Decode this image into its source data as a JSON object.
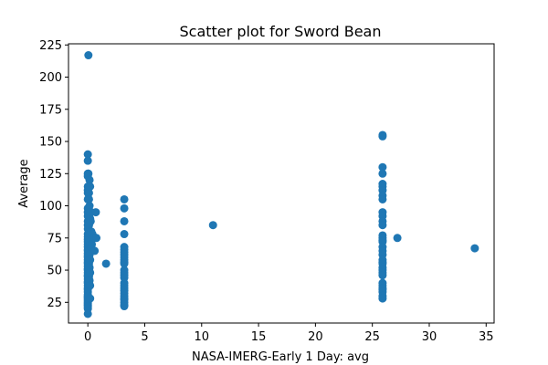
{
  "chart_data": {
    "type": "scatter",
    "title": "Scatter plot for Sword Bean",
    "xlabel": "NASA-IMERG-Early 1 Day: avg",
    "ylabel": "Average",
    "xlim": [
      -1.7,
      35.7
    ],
    "ylim": [
      8.9,
      225.9
    ],
    "xticks": [
      0,
      5,
      10,
      15,
      20,
      25,
      30,
      35
    ],
    "yticks": [
      25,
      50,
      75,
      100,
      125,
      150,
      175,
      200,
      225
    ],
    "grid": false,
    "marker_color": "#1f77b4",
    "series": [
      {
        "x": [
          0.05,
          0.0,
          0.0,
          0.0,
          0.0,
          0.0,
          0.0,
          0.0,
          0.0,
          0.0,
          0.0,
          0.0,
          0.0,
          0.0,
          0.0,
          0.0,
          0.0,
          0.0,
          0.0,
          0.0,
          0.0,
          0.0,
          0.0,
          0.0,
          0.0,
          0.0,
          0.0,
          0.0,
          0.0,
          0.0,
          0.0,
          0.0,
          0.0,
          0.0,
          0.0,
          0.0,
          0.0,
          0.0,
          0.0,
          0.0,
          0.0,
          0.0,
          0.0,
          0.0,
          0.0,
          0.0,
          0.0,
          0.0,
          0.0,
          0.0,
          0.0,
          0.0,
          0.0,
          0.0,
          0.0,
          0.05,
          0.1,
          0.1,
          0.1,
          0.1,
          0.1,
          0.1,
          0.1,
          0.1,
          0.1,
          0.1,
          0.1,
          0.1,
          0.1,
          0.1,
          0.1,
          0.15,
          0.15,
          0.15,
          0.15,
          0.15,
          0.15,
          0.15,
          0.2,
          0.2,
          0.2,
          0.2,
          0.2,
          0.2,
          0.2,
          0.2,
          0.2,
          0.25,
          0.3,
          0.3,
          0.3,
          0.35,
          0.4,
          0.5,
          0.6,
          0.6,
          0.7,
          0.75,
          1.6,
          3.2,
          3.2,
          3.2,
          3.2,
          3.2,
          3.2,
          3.2,
          3.2,
          3.2,
          3.2,
          3.2,
          3.2,
          3.2,
          3.2,
          3.2,
          3.2,
          3.2,
          3.2,
          3.2,
          3.2,
          3.2,
          3.2,
          3.2,
          3.2,
          3.2,
          3.2,
          3.2,
          11.0,
          25.9,
          25.9,
          25.9,
          25.9,
          25.9,
          25.9,
          25.9,
          25.9,
          25.9,
          25.9,
          25.9,
          25.9,
          25.9,
          25.9,
          25.9,
          25.9,
          25.9,
          25.9,
          25.9,
          25.9,
          25.9,
          25.9,
          25.9,
          25.9,
          25.9,
          25.9,
          25.9,
          25.9,
          25.9,
          25.9,
          25.9,
          25.9,
          25.9,
          25.9,
          27.2,
          34.0
        ],
        "y": [
          217,
          140,
          135,
          125,
          123,
          115,
          112,
          110,
          105,
          98,
          95,
          92,
          88,
          85,
          82,
          78,
          76,
          74,
          72,
          70,
          68,
          66,
          65,
          63,
          61,
          60,
          58,
          56,
          55,
          53,
          51,
          50,
          48,
          46,
          45,
          43,
          41,
          40,
          38,
          36,
          35,
          33,
          31,
          30,
          29,
          28,
          27,
          26,
          25,
          24,
          23,
          22,
          21,
          20,
          16,
          125,
          115,
          110,
          105,
          97,
          95,
          85,
          78,
          75,
          70,
          65,
          60,
          55,
          50,
          45,
          40,
          120,
          100,
          80,
          72,
          62,
          52,
          42,
          115,
          95,
          90,
          78,
          70,
          58,
          48,
          38,
          28,
          88,
          95,
          80,
          68,
          70,
          78,
          76,
          75,
          65,
          95,
          75,
          55,
          105,
          98,
          88,
          78,
          68,
          66,
          64,
          62,
          60,
          58,
          56,
          55,
          50,
          48,
          46,
          44,
          40,
          38,
          36,
          34,
          32,
          30,
          28,
          27,
          25,
          23,
          22,
          85,
          155,
          154,
          130,
          125,
          117,
          115,
          112,
          108,
          105,
          95,
          92,
          88,
          85,
          77,
          75,
          73,
          72,
          68,
          65,
          62,
          58,
          56,
          55,
          52,
          50,
          48,
          46,
          40,
          38,
          36,
          35,
          33,
          30,
          28,
          75,
          67
        ]
      }
    ]
  }
}
